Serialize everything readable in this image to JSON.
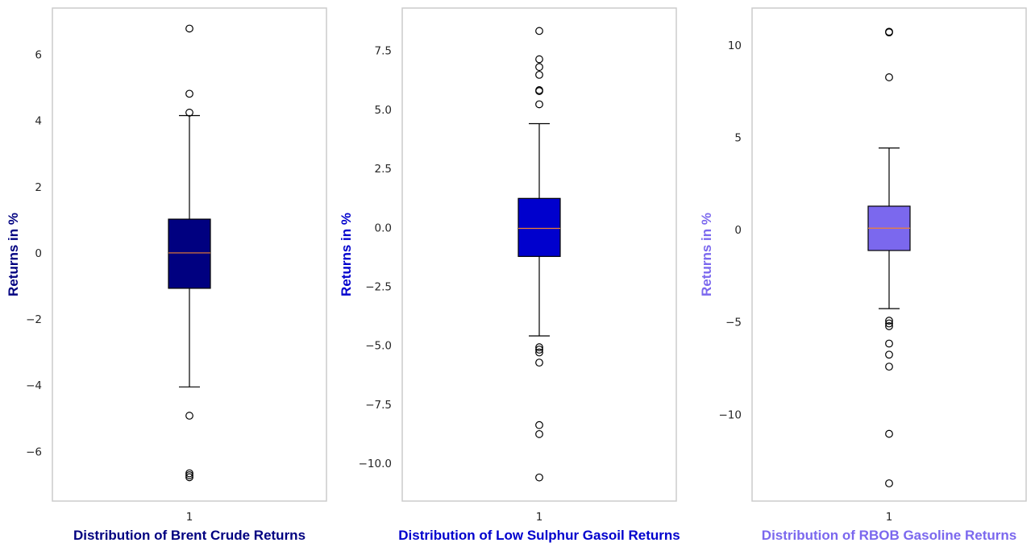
{
  "chart_data": [
    {
      "type": "box",
      "xlabel": "Distribution of Brent Crude Returns",
      "ylabel": "Returns in %",
      "color": "#000080",
      "label_color": "#000080",
      "category": "1",
      "yticks": [
        -6,
        -4,
        -2,
        0,
        2,
        4,
        6
      ],
      "ytick_labels": [
        "−6",
        "−4",
        "−2",
        "0",
        "2",
        "4",
        "6"
      ],
      "ylim": [
        -7.5,
        7.4
      ],
      "grid": false,
      "box": {
        "whisker_low": -4.05,
        "q1": -1.07,
        "median": 0.0,
        "q3": 1.02,
        "whisker_high": 4.15
      },
      "outliers": [
        6.78,
        4.81,
        4.24,
        -4.92,
        -6.66,
        -6.72,
        -6.78
      ]
    },
    {
      "type": "box",
      "xlabel": "Distribution of Low Sulphur Gasoil Returns",
      "ylabel": "Returns in %",
      "color": "#0000CD",
      "label_color": "#0000CD",
      "category": "1",
      "yticks": [
        -10.0,
        -7.5,
        -5.0,
        -2.5,
        0.0,
        2.5,
        5.0,
        7.5
      ],
      "ytick_labels": [
        "−10.0",
        "−7.5",
        "−5.0",
        "−2.5",
        "0.0",
        "2.5",
        "5.0",
        "7.5"
      ],
      "ylim": [
        -11.6,
        9.3
      ],
      "grid": false,
      "box": {
        "whisker_low": -4.6,
        "q1": -1.23,
        "median": -0.04,
        "q3": 1.23,
        "whisker_high": 4.4
      },
      "outliers": [
        8.33,
        7.13,
        6.8,
        6.47,
        5.82,
        5.78,
        5.22,
        -5.08,
        -5.18,
        -5.3,
        -5.73,
        -8.38,
        -8.76,
        -10.6
      ]
    },
    {
      "type": "box",
      "xlabel": "Distribution of RBOB Gasoline Returns",
      "ylabel": "Returns in %",
      "color": "#7B68EE",
      "label_color": "#7B68EE",
      "category": "1",
      "yticks": [
        -10,
        -5,
        0,
        5,
        10
      ],
      "ytick_labels": [
        "−10",
        "−5",
        "0",
        "5",
        "10"
      ],
      "ylim": [
        -14.7,
        12.0
      ],
      "grid": false,
      "box": {
        "whisker_low": -4.28,
        "q1": -1.13,
        "median": 0.08,
        "q3": 1.27,
        "whisker_high": 4.42
      },
      "outliers": [
        10.72,
        10.68,
        8.25,
        -4.93,
        -5.08,
        -5.23,
        -6.17,
        -6.77,
        -7.42,
        -11.06,
        -13.74
      ]
    }
  ]
}
